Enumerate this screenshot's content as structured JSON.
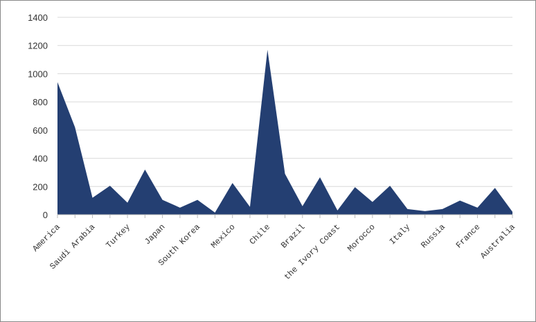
{
  "chart_data": {
    "type": "area",
    "categories": [
      "America",
      null,
      "Saudi Arabia",
      null,
      "Turkey",
      null,
      "Japan",
      null,
      "South Korea",
      null,
      "Mexico",
      null,
      "Chile",
      null,
      "Brazil",
      null,
      "the Ivory Coast",
      null,
      "Morocco",
      null,
      "Italy",
      null,
      "Russia",
      null,
      "France",
      null,
      "Australia"
    ],
    "values": [
      940,
      620,
      120,
      205,
      85,
      320,
      105,
      50,
      105,
      15,
      225,
      55,
      1170,
      290,
      60,
      265,
      30,
      195,
      90,
      205,
      40,
      25,
      40,
      100,
      50,
      190,
      20
    ],
    "color": "#243f72",
    "ylim": [
      0,
      1400
    ],
    "yticks": [
      0,
      200,
      400,
      600,
      800,
      1000,
      1200,
      1400
    ],
    "grid": true
  }
}
